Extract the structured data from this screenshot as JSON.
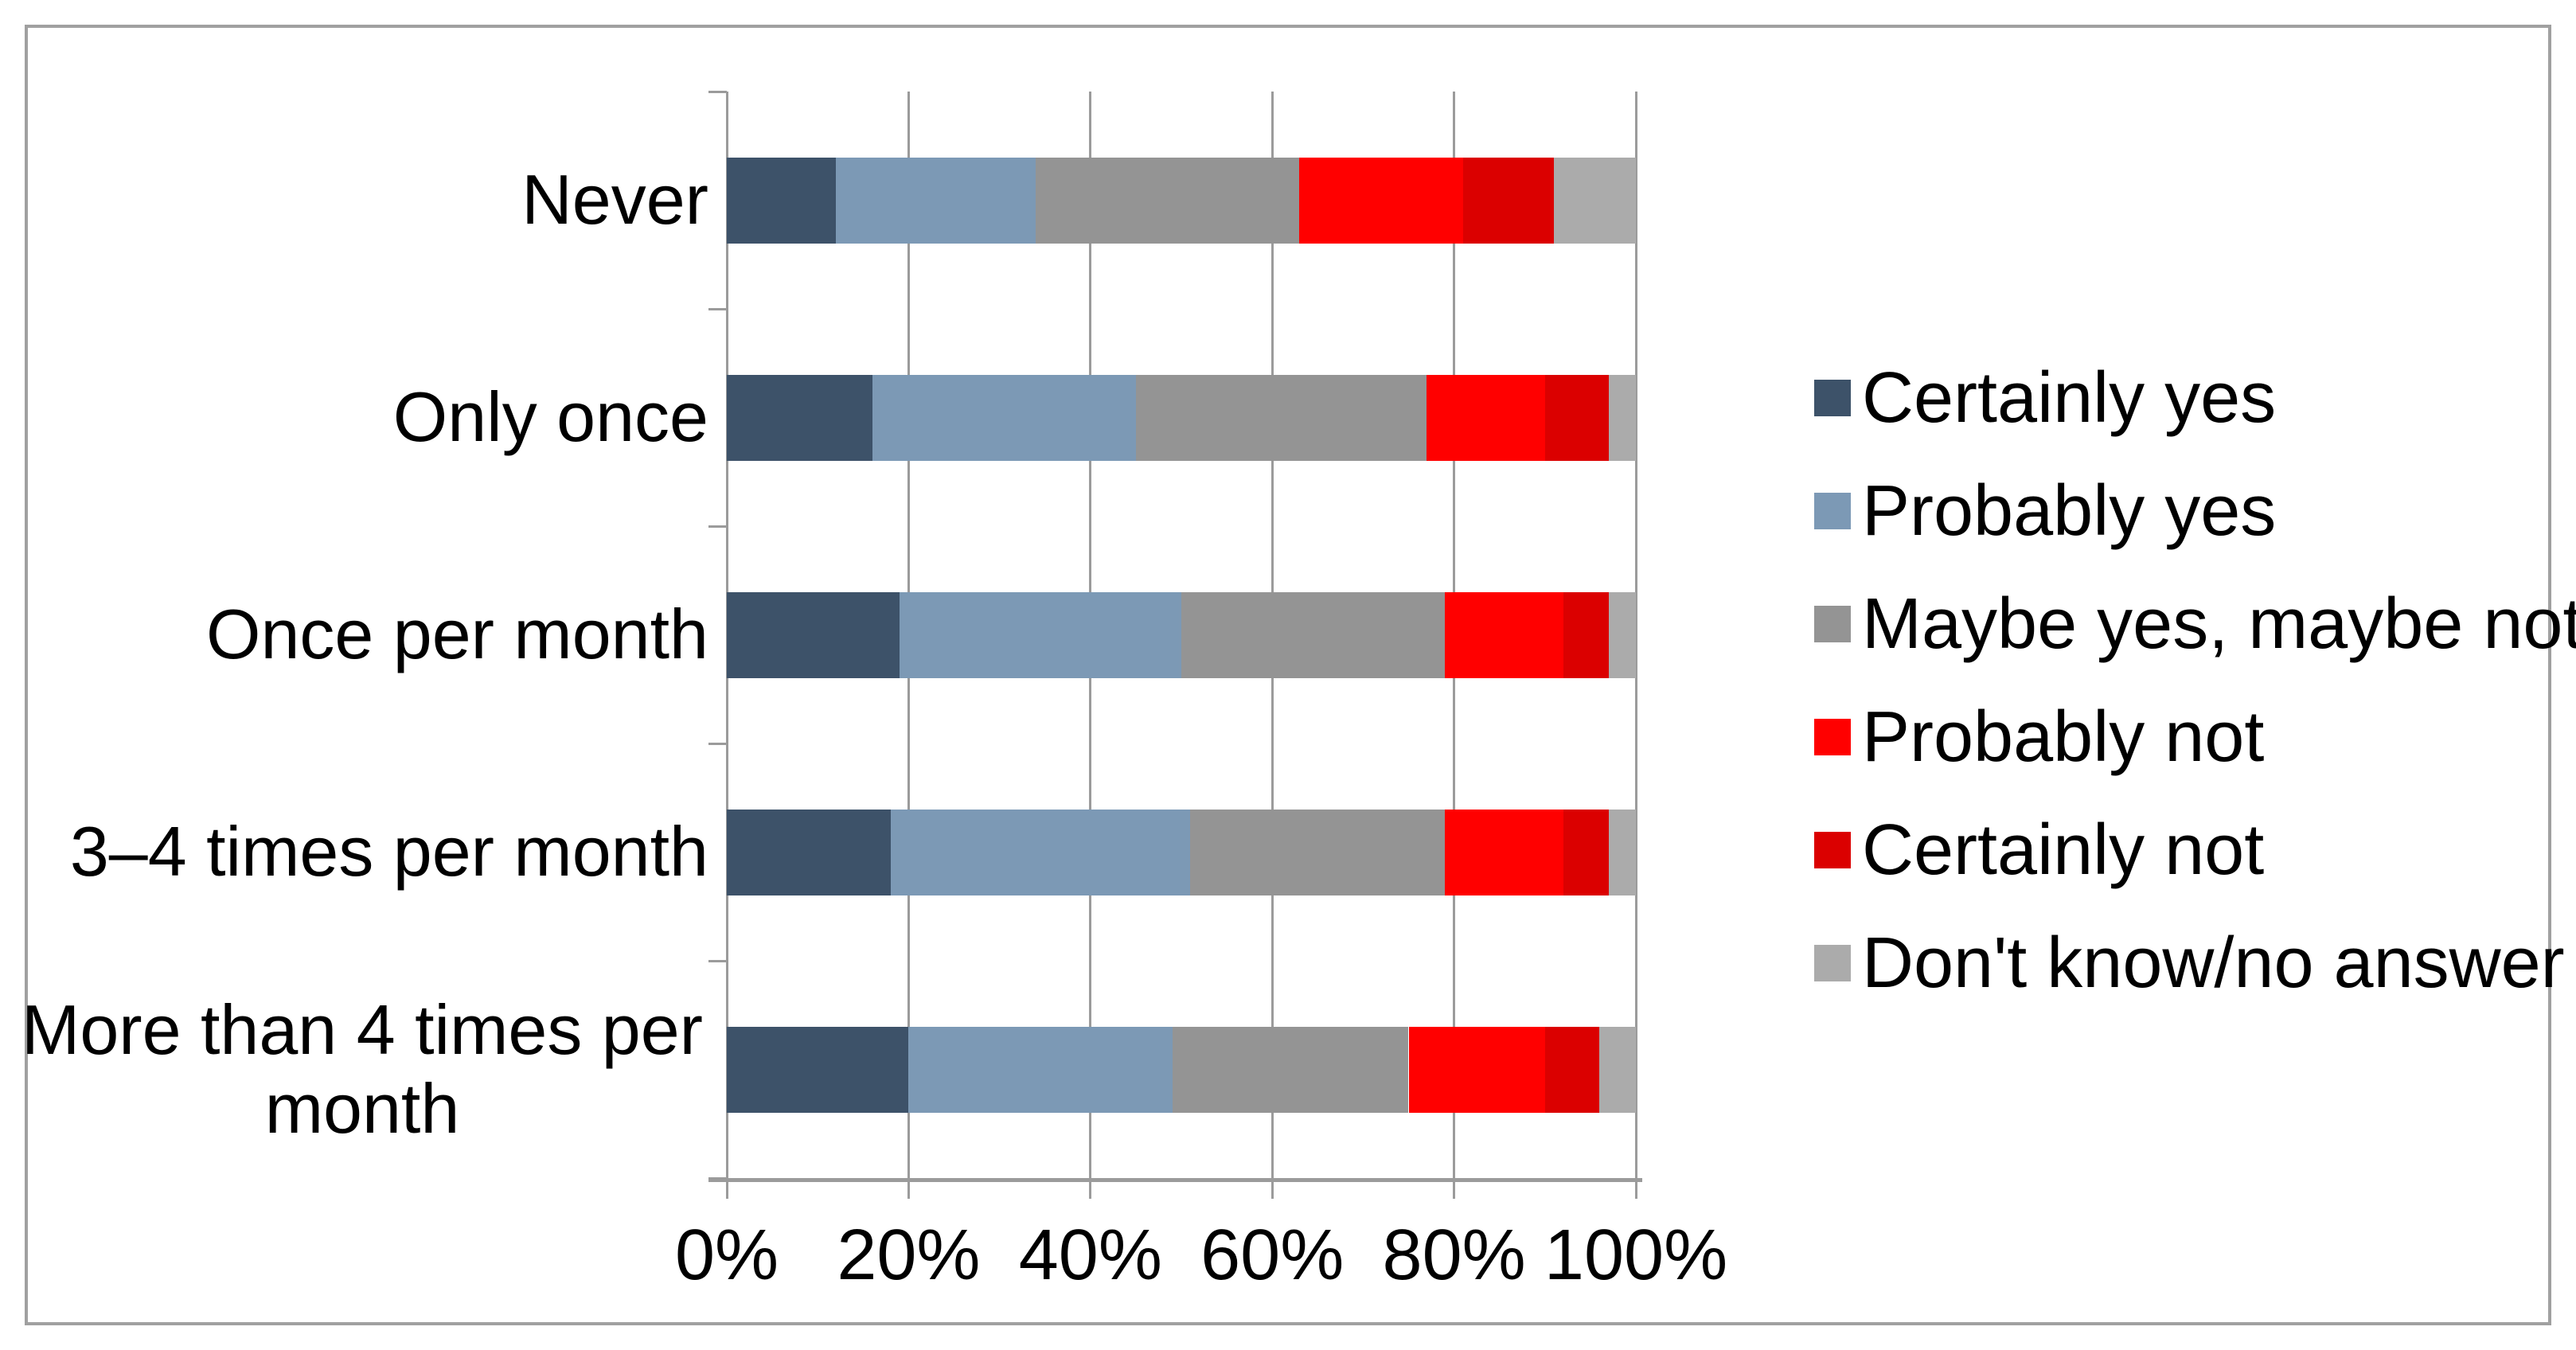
{
  "page": {
    "background_color": "#FFFFFF",
    "frame_border_color": "#A0A0A0",
    "gridline_color": "#9B9B9B",
    "axis_line_color": "#9B9B9B",
    "text_color": "#000000"
  },
  "chart_data": {
    "type": "bar",
    "variant": "horizontal-stacked-100pct",
    "title": "",
    "xlabel": "",
    "ylabel": "",
    "xlim": [
      0,
      100
    ],
    "x_tick_labels": [
      "0%",
      "20%",
      "40%",
      "60%",
      "80%",
      "100%"
    ],
    "x_tick_values": [
      0,
      20,
      40,
      60,
      80,
      100
    ],
    "grid": "vertical gridlines on",
    "legend_position": "right",
    "values_unit": "%",
    "categories": [
      "Never",
      "Only once",
      "Once per month",
      "3–4 times per month",
      "More than 4 times per month"
    ],
    "series": [
      {
        "name": "Certainly yes",
        "color": "#3D5269",
        "values": [
          12,
          16,
          19,
          18,
          20
        ]
      },
      {
        "name": "Probably yes",
        "color": "#7C99B5",
        "values": [
          22,
          29,
          31,
          33,
          29
        ]
      },
      {
        "name": "Maybe yes, maybe not",
        "color": "#949494",
        "values": [
          29,
          32,
          29,
          28,
          26
        ]
      },
      {
        "name": "Probably not",
        "color": "#FF0000",
        "values": [
          18,
          13,
          13,
          13,
          15
        ]
      },
      {
        "name": "Certainly not",
        "color": "#DB0000",
        "values": [
          10,
          7,
          5,
          5,
          6
        ]
      },
      {
        "name": "Don't know/no answer",
        "color": "#ABABAB",
        "values": [
          9,
          3,
          3,
          3,
          4
        ]
      }
    ]
  }
}
